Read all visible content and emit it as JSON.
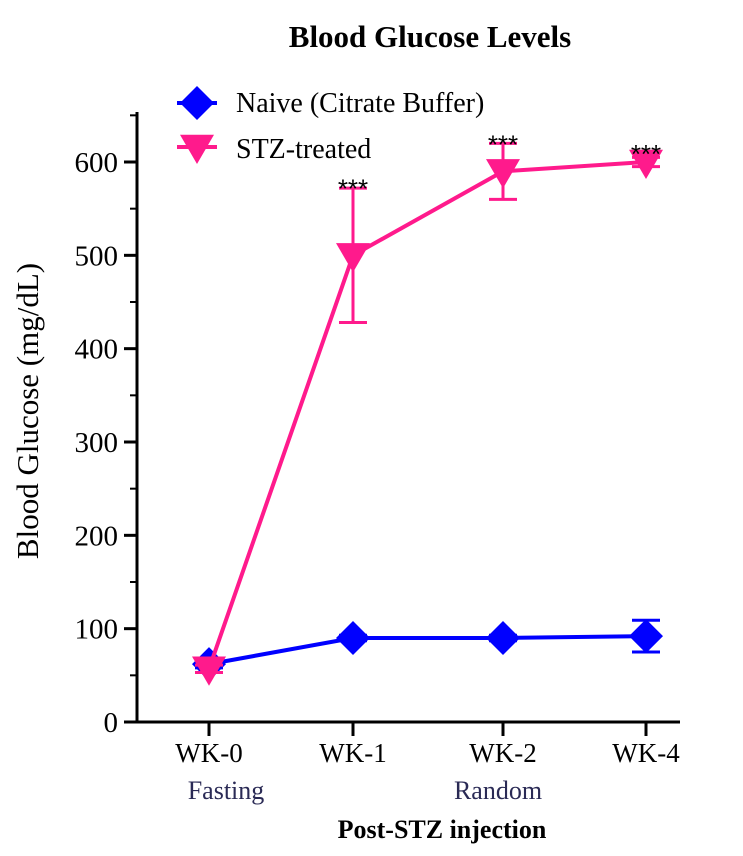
{
  "chart_data": {
    "type": "line",
    "title": "Blood Glucose Levels",
    "xlabel": "Post-STZ injection",
    "ylabel": "Blood Glucose (mg/dL)",
    "categories": [
      "WK-0",
      "WK-1",
      "WK-2",
      "WK-4"
    ],
    "phase_labels": [
      {
        "label": "Fasting",
        "under": "WK-0"
      },
      {
        "label": "Random",
        "under": "WK-1–WK-2"
      }
    ],
    "ylim": [
      0,
      650
    ],
    "yticks": [
      0,
      100,
      200,
      300,
      400,
      500,
      600
    ],
    "series": [
      {
        "name": "Naive (Citrate Buffer)",
        "color": "#0000ff",
        "marker": "diamond",
        "values": [
          62,
          90,
          90,
          92
        ],
        "error": [
          4,
          3,
          3,
          17
        ]
      },
      {
        "name": "STZ-treated",
        "color": "#ff1a8c",
        "marker": "triangle-down",
        "values": [
          57,
          500,
          590,
          600
        ],
        "error": [
          4,
          72,
          30,
          5
        ]
      }
    ],
    "annotations": [
      {
        "text": "***",
        "category": "WK-1",
        "value": 575
      },
      {
        "text": "***",
        "category": "WK-2",
        "value": 622
      },
      {
        "text": "***",
        "category": "WK-4",
        "value": 612
      }
    ],
    "legend_position": "top-left"
  }
}
